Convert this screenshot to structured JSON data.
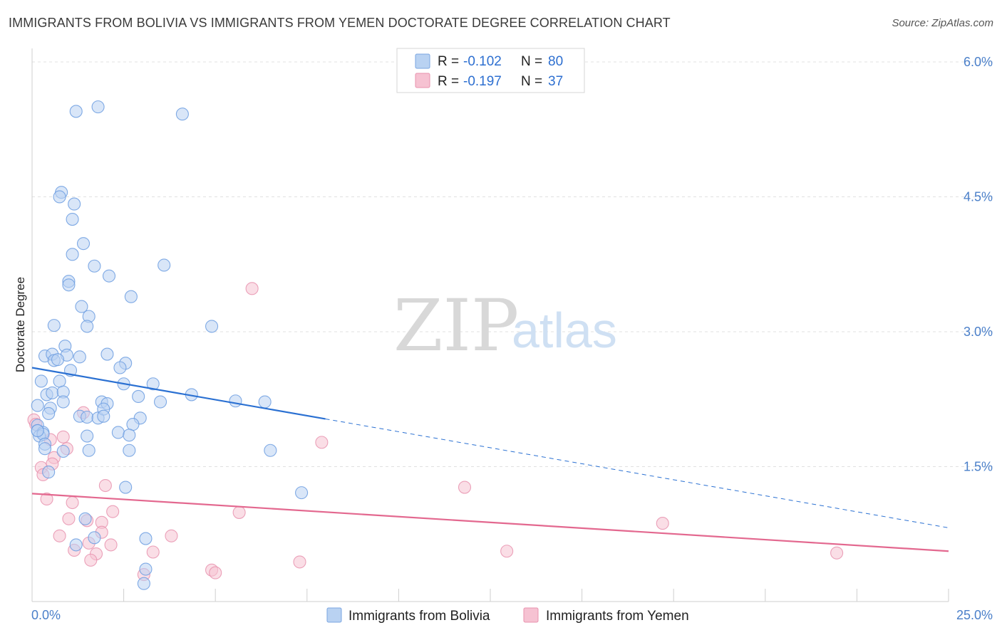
{
  "header": {
    "title": "IMMIGRANTS FROM BOLIVIA VS IMMIGRANTS FROM YEMEN DOCTORATE DEGREE CORRELATION CHART",
    "source": "Source: ZipAtlas.com"
  },
  "watermark": {
    "zip": "ZIP",
    "atlas": "atlas"
  },
  "colors": {
    "blue": "#4a86d8",
    "blue_fill": "#b9d2f2",
    "pink": "#e3688f",
    "pink_fill": "#f6c2d2",
    "axis_text": "#4a7fc9",
    "grid": "#e0e0e0"
  },
  "legend": {
    "rows": [
      {
        "r_label": "R =",
        "r_value": "-0.102",
        "n_label": "N =",
        "n_value": "80"
      },
      {
        "r_label": "R =",
        "r_value": "-0.197",
        "n_label": "N =",
        "n_value": "37"
      }
    ]
  },
  "chart_data": {
    "type": "scatter",
    "title": "IMMIGRANTS FROM BOLIVIA VS IMMIGRANTS FROM YEMEN DOCTORATE DEGREE CORRELATION CHART",
    "xlabel": "",
    "ylabel": "Doctorate Degree",
    "xlim": [
      0,
      25
    ],
    "ylim": [
      0,
      6.15
    ],
    "x_tick_labels": [
      "0.0%",
      "25.0%"
    ],
    "y_ticks": [
      1.5,
      3.0,
      4.5,
      6.0
    ],
    "y_tick_labels": [
      "1.5%",
      "3.0%",
      "4.5%",
      "6.0%"
    ],
    "grid": true,
    "legend_position": "top-center",
    "series": [
      {
        "name": "Immigrants from Bolivia",
        "r": -0.102,
        "n": 80,
        "trend": {
          "x_start": 0,
          "y_start": 2.6,
          "x_solid_end": 8.0,
          "x_end": 25.0,
          "y_end": 0.82
        },
        "points": [
          [
            1.2,
            5.45
          ],
          [
            1.8,
            5.5
          ],
          [
            4.1,
            5.42
          ],
          [
            0.8,
            4.55
          ],
          [
            0.75,
            4.5
          ],
          [
            1.15,
            4.42
          ],
          [
            1.1,
            4.25
          ],
          [
            1.4,
            3.98
          ],
          [
            1.1,
            3.86
          ],
          [
            1.7,
            3.73
          ],
          [
            3.6,
            3.74
          ],
          [
            2.1,
            3.62
          ],
          [
            1.0,
            3.56
          ],
          [
            1.0,
            3.52
          ],
          [
            2.7,
            3.39
          ],
          [
            1.35,
            3.28
          ],
          [
            1.55,
            3.17
          ],
          [
            1.5,
            3.06
          ],
          [
            0.6,
            3.07
          ],
          [
            4.9,
            3.06
          ],
          [
            0.9,
            2.84
          ],
          [
            0.35,
            2.73
          ],
          [
            0.55,
            2.75
          ],
          [
            0.95,
            2.74
          ],
          [
            0.6,
            2.68
          ],
          [
            1.3,
            2.72
          ],
          [
            2.05,
            2.75
          ],
          [
            2.55,
            2.65
          ],
          [
            2.4,
            2.6
          ],
          [
            0.7,
            2.69
          ],
          [
            1.05,
            2.57
          ],
          [
            0.25,
            2.45
          ],
          [
            0.75,
            2.45
          ],
          [
            2.5,
            2.42
          ],
          [
            3.3,
            2.42
          ],
          [
            0.4,
            2.3
          ],
          [
            0.55,
            2.32
          ],
          [
            0.85,
            2.33
          ],
          [
            2.9,
            2.28
          ],
          [
            4.35,
            2.3
          ],
          [
            1.9,
            2.22
          ],
          [
            2.05,
            2.2
          ],
          [
            3.5,
            2.22
          ],
          [
            5.55,
            2.23
          ],
          [
            6.35,
            2.22
          ],
          [
            0.5,
            2.15
          ],
          [
            0.85,
            2.22
          ],
          [
            0.15,
            2.18
          ],
          [
            0.45,
            2.09
          ],
          [
            1.3,
            2.06
          ],
          [
            1.5,
            2.05
          ],
          [
            1.8,
            2.04
          ],
          [
            1.95,
            2.14
          ],
          [
            1.95,
            2.06
          ],
          [
            2.95,
            2.04
          ],
          [
            2.75,
            1.97
          ],
          [
            0.15,
            1.96
          ],
          [
            0.15,
            1.9
          ],
          [
            0.3,
            1.88
          ],
          [
            0.2,
            1.84
          ],
          [
            0.3,
            1.86
          ],
          [
            2.35,
            1.88
          ],
          [
            2.65,
            1.85
          ],
          [
            1.5,
            1.84
          ],
          [
            0.35,
            1.75
          ],
          [
            0.35,
            1.7
          ],
          [
            0.85,
            1.67
          ],
          [
            1.55,
            1.68
          ],
          [
            2.65,
            1.68
          ],
          [
            6.5,
            1.68
          ],
          [
            0.45,
            1.44
          ],
          [
            2.55,
            1.27
          ],
          [
            7.35,
            1.21
          ],
          [
            1.45,
            0.92
          ],
          [
            1.7,
            0.71
          ],
          [
            3.1,
            0.7
          ],
          [
            1.2,
            0.63
          ],
          [
            3.1,
            0.36
          ],
          [
            3.05,
            0.2
          ],
          [
            0.15,
            1.9
          ]
        ]
      },
      {
        "name": "Immigrants from Yemen",
        "r": -0.197,
        "n": 37,
        "trend": {
          "x_start": 0,
          "y_start": 1.2,
          "x_end": 25.0,
          "y_end": 0.56
        },
        "points": [
          [
            0.05,
            2.02
          ],
          [
            1.4,
            2.1
          ],
          [
            6.0,
            3.48
          ],
          [
            0.85,
            1.83
          ],
          [
            0.5,
            1.8
          ],
          [
            0.95,
            1.7
          ],
          [
            0.6,
            1.6
          ],
          [
            7.9,
            1.77
          ],
          [
            0.55,
            1.53
          ],
          [
            0.25,
            1.49
          ],
          [
            0.3,
            1.41
          ],
          [
            2.0,
            1.29
          ],
          [
            0.4,
            1.14
          ],
          [
            1.1,
            1.1
          ],
          [
            11.8,
            1.27
          ],
          [
            2.2,
            1.0
          ],
          [
            5.65,
            0.99
          ],
          [
            1.0,
            0.92
          ],
          [
            1.5,
            0.9
          ],
          [
            1.9,
            0.88
          ],
          [
            17.2,
            0.87
          ],
          [
            0.75,
            0.73
          ],
          [
            1.9,
            0.77
          ],
          [
            3.8,
            0.73
          ],
          [
            1.55,
            0.65
          ],
          [
            2.15,
            0.63
          ],
          [
            1.15,
            0.57
          ],
          [
            3.3,
            0.55
          ],
          [
            1.75,
            0.53
          ],
          [
            12.95,
            0.56
          ],
          [
            21.95,
            0.54
          ],
          [
            1.6,
            0.46
          ],
          [
            7.3,
            0.44
          ],
          [
            4.9,
            0.35
          ],
          [
            5.0,
            0.32
          ],
          [
            3.05,
            0.3
          ],
          [
            0.1,
            1.97
          ]
        ]
      }
    ]
  }
}
